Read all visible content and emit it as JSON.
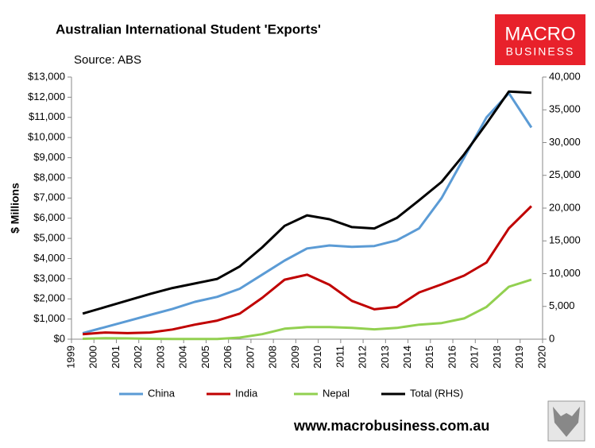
{
  "chart_data": {
    "type": "line",
    "title": "Australian International Student 'Exports'",
    "source": "Source: ABS",
    "y_label": "$ Millions",
    "x": [
      1999.5,
      2000.5,
      2001.5,
      2002.5,
      2003.5,
      2004.5,
      2005.5,
      2006.5,
      2007.5,
      2008.5,
      2009.5,
      2010.5,
      2011.5,
      2012.5,
      2013.5,
      2014.5,
      2015.5,
      2016.5,
      2017.5,
      2018.5,
      2019.5
    ],
    "xlim": [
      1999,
      2020
    ],
    "xticks": [
      1999,
      2000,
      2001,
      2002,
      2003,
      2004,
      2005,
      2006,
      2007,
      2008,
      2009,
      2010,
      2011,
      2012,
      2013,
      2014,
      2015,
      2016,
      2017,
      2018,
      2019,
      2020
    ],
    "ylim": [
      0,
      13000
    ],
    "yticks": [
      {
        "value": 0,
        "label": "$0"
      },
      {
        "value": 1000,
        "label": "$1,000"
      },
      {
        "value": 2000,
        "label": "$2,000"
      },
      {
        "value": 3000,
        "label": "$3,000"
      },
      {
        "value": 4000,
        "label": "$4,000"
      },
      {
        "value": 5000,
        "label": "$5,000"
      },
      {
        "value": 6000,
        "label": "$6,000"
      },
      {
        "value": 7000,
        "label": "$7,000"
      },
      {
        "value": 8000,
        "label": "$8,000"
      },
      {
        "value": 9000,
        "label": "$9,000"
      },
      {
        "value": 10000,
        "label": "$10,000"
      },
      {
        "value": 11000,
        "label": "$11,000"
      },
      {
        "value": 12000,
        "label": "$12,000"
      },
      {
        "value": 13000,
        "label": "$13,000"
      }
    ],
    "y2lim": [
      0,
      40000
    ],
    "y2ticks": [
      0,
      {
        "value": 5000,
        "label": "5,000"
      },
      {
        "value": 10000,
        "label": "10,000"
      },
      {
        "value": 15000,
        "label": "15,000"
      },
      {
        "value": 20000,
        "label": "20,000"
      },
      {
        "value": 25000,
        "label": "25,000"
      },
      {
        "value": 30000,
        "label": "30,000"
      },
      {
        "value": 35000,
        "label": "35,000"
      },
      {
        "value": 40000,
        "label": "40,000"
      }
    ],
    "grid": false,
    "legend": "bottom",
    "series": [
      {
        "name": "China",
        "color": "#5b9bd5",
        "values": [
          300,
          600,
          900,
          1200,
          1500,
          1850,
          2100,
          2500,
          3200,
          3900,
          4500,
          4650,
          4580,
          4620,
          4900,
          5500,
          7000,
          9000,
          11000,
          12200,
          10500
        ]
      },
      {
        "name": "India",
        "color": "#c00000",
        "values": [
          250,
          330,
          300,
          330,
          480,
          720,
          920,
          1270,
          2050,
          2950,
          3200,
          2700,
          1900,
          1480,
          1600,
          2320,
          2720,
          3150,
          3800,
          5500,
          6600
        ]
      },
      {
        "name": "Nepal",
        "color": "#92d050",
        "values": [
          20,
          50,
          40,
          20,
          10,
          10,
          10,
          80,
          250,
          520,
          600,
          600,
          560,
          490,
          560,
          720,
          800,
          1030,
          1600,
          2600,
          2950
        ]
      },
      {
        "name": "Total (RHS)",
        "color": "#000000",
        "axis": "y2",
        "values": [
          3900,
          4900,
          5900,
          6900,
          7800,
          8500,
          9200,
          11100,
          14000,
          17300,
          18900,
          18300,
          17100,
          16900,
          18500,
          21200,
          24000,
          28200,
          32900,
          37800,
          37600
        ]
      }
    ]
  },
  "logo": {
    "line1": "MACRO",
    "line2": "BUSINESS"
  },
  "footer": "www.macrobusiness.com.au"
}
